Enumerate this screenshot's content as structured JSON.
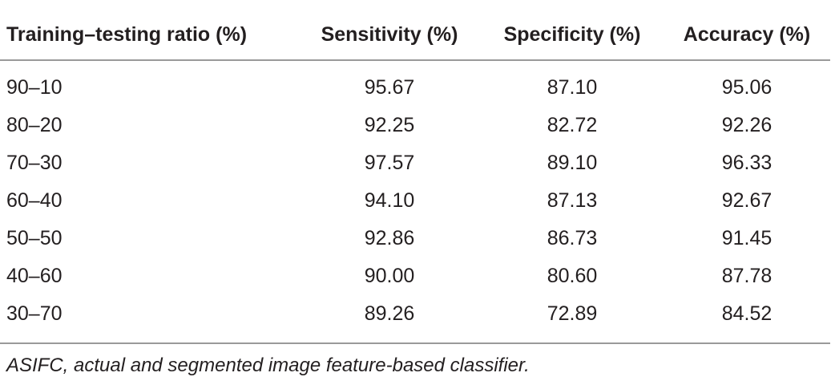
{
  "table": {
    "headers": [
      "Training–testing ratio (%)",
      "Sensitivity (%)",
      "Specificity (%)",
      "Accuracy (%)"
    ],
    "rows": [
      [
        "90–10",
        "95.67",
        "87.10",
        "95.06"
      ],
      [
        "80–20",
        "92.25",
        "82.72",
        "92.26"
      ],
      [
        "70–30",
        "97.57",
        "89.10",
        "96.33"
      ],
      [
        "60–40",
        "94.10",
        "87.13",
        "92.67"
      ],
      [
        "50–50",
        "92.86",
        "86.73",
        "91.45"
      ],
      [
        "40–60",
        "90.00",
        "80.60",
        "87.78"
      ],
      [
        "30–70",
        "89.26",
        "72.89",
        "84.52"
      ]
    ]
  },
  "footnote": "ASIFC, actual and segmented image feature-based classifier."
}
